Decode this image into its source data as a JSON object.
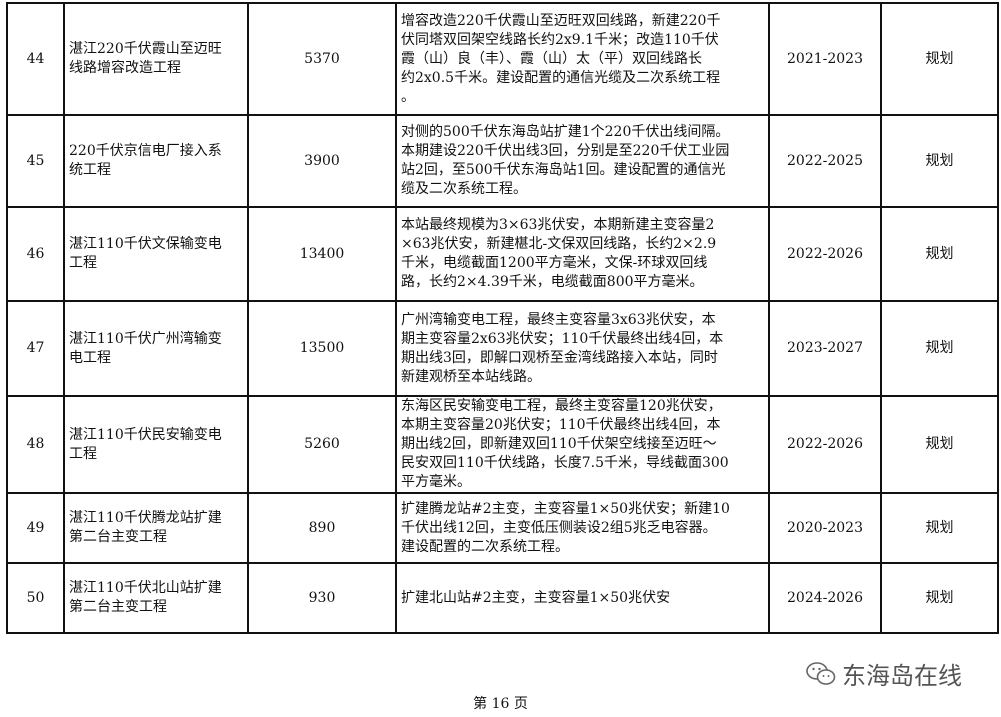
{
  "rows": [
    {
      "no": "44",
      "name": "湛江220千伏霞山至迈旺\n线路增容改造工程",
      "invest": "5370",
      "desc": "增容改造220千伏霞山至迈旺双回线路，新建220千\n伏同塔双回架空线路长约2x9.1千米；改造110千伏\n霞（山）良（丰）、霞（山）太（平）双回线路长\n约2x0.5千米。建设配置的通信光缆及二次系统工程\n。",
      "period": "2021-2023",
      "status": "规划"
    },
    {
      "no": "45",
      "name": "220千伏京信电厂接入系\n统工程",
      "invest": "3900",
      "desc": "对侧的500千伏东海岛站扩建1个220千伏出线间隔。\n本期建设220千伏出线3回，分别是至220千伏工业园\n站2回，至500千伏东海岛站1回。建设配置的通信光\n缆及二次系统工程。",
      "period": "2022-2025",
      "status": "规划"
    },
    {
      "no": "46",
      "name": "湛江110千伏文保输变电\n工程",
      "invest": "13400",
      "desc": "本站最终规模为3×63兆伏安，本期新建主变容量2\n×63兆伏安，新建椹北-文保双回线路，长约2×2.9\n千米，电缆截面1200平方毫米，文保-环球双回线\n路，长约2×4.39千米，电缆截面800平方毫米。",
      "period": "2022-2026",
      "status": "规划"
    },
    {
      "no": "47",
      "name": "湛江110千伏广州湾输变\n电工程",
      "invest": "13500",
      "desc": "广州湾输变电工程，最终主变容量3x63兆伏安，本\n期主变容量2x63兆伏安；110千伏最终出线4回，本\n期出线3回，即解口观桥至金湾线路接入本站，同时\n新建观桥至本站线路。",
      "period": "2023-2027",
      "status": "规划"
    },
    {
      "no": "48",
      "name": "湛江110千伏民安输变电\n工程",
      "invest": "5260",
      "desc": "东海区民安输变电工程，最终主变容量120兆伏安，\n本期主变容量20兆伏安；110千伏最终出线4回，本\n期出线2回，即新建双回110千伏架空线接至迈旺～\n民安双回110千伏线路，长度7.5千米，导线截面300\n平方毫米。",
      "period": "2022-2026",
      "status": "规划"
    },
    {
      "no": "49",
      "name": "湛江110千伏腾龙站扩建\n第二台主变工程",
      "invest": "890",
      "desc": "扩建腾龙站#2主变，主变容量1×50兆伏安；新建10\n千伏出线12回，主变低压侧装设2组5兆乏电容器。\n建设配置的二次系统工程。",
      "period": "2020-2023",
      "status": "规划"
    },
    {
      "no": "50",
      "name": "湛江110千伏北山站扩建\n第二台主变工程",
      "invest": "930",
      "desc": "扩建北山站#2主变，主变容量1×50兆伏安",
      "period": "2024-2026",
      "status": "规划"
    }
  ],
  "footer": "第 16 页",
  "watermark": {
    "icon": "wechat-icon",
    "text": "东海岛在线"
  }
}
